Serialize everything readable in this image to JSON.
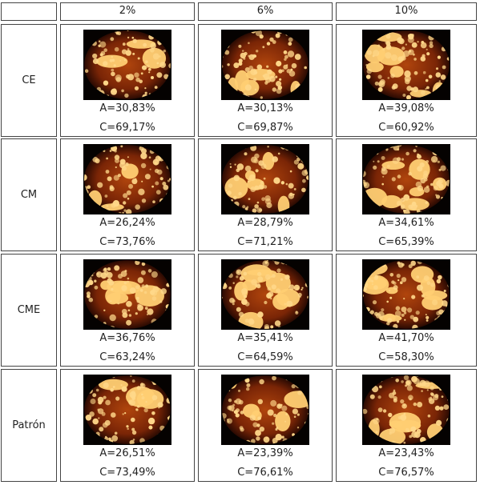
{
  "columns": [
    "2%",
    "6%",
    "10%"
  ],
  "rows": [
    {
      "label": "CE",
      "cells": [
        {
          "a": "A=30,83%",
          "c": "C=69,17%"
        },
        {
          "a": "A=30,13%",
          "c": "C=69,87%"
        },
        {
          "a": "A=39,08%",
          "c": "C=60,92%"
        }
      ]
    },
    {
      "label": "CM",
      "cells": [
        {
          "a": "A=26,24%",
          "c": "C=73,76%"
        },
        {
          "a": "A=28,79%",
          "c": "C=71,21%"
        },
        {
          "a": "A=34,61%",
          "c": "C=65,39%"
        }
      ]
    },
    {
      "label": "CME",
      "cells": [
        {
          "a": "A=36,76%",
          "c": "C=63,24%"
        },
        {
          "a": "A=35,41%",
          "c": "C=64,59%"
        },
        {
          "a": "A=41,70%",
          "c": "C=58,30%"
        }
      ]
    },
    {
      "label": "Patrón",
      "cells": [
        {
          "a": "A=26,51%",
          "c": "C=73,49%"
        },
        {
          "a": "A=23,39%",
          "c": "C=76,61%"
        },
        {
          "a": "A=23,43%",
          "c": "C=76,57%"
        }
      ]
    }
  ],
  "colors": {
    "background": "#ffffff",
    "border": "#444444",
    "glow_dark": "#6b1e06",
    "glow_mid": "#c0500e",
    "glow_light": "#ffcf73"
  }
}
